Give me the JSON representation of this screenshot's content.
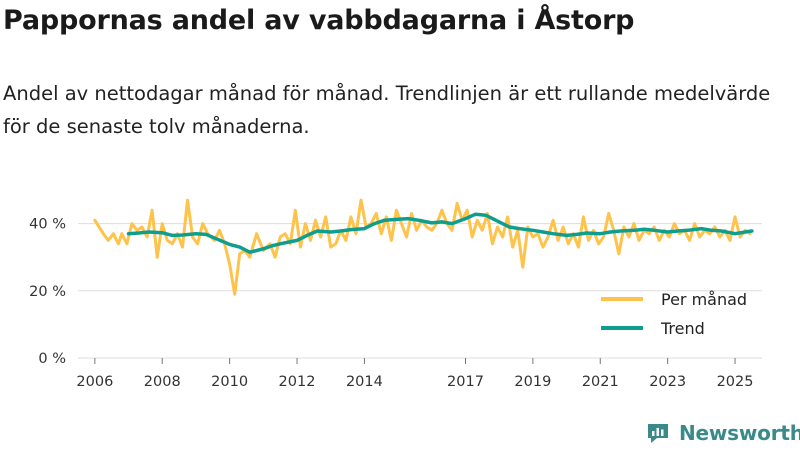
{
  "title": "Pappornas andel av vabbdagarna i Åstorp",
  "subtitle": "Andel av nettodagar månad för månad. Trendlinjen är ett rullande medelvärde för de senaste tolv månaderna.",
  "brand": {
    "name": "Newsworthy",
    "icon": "newsworthy-logo-icon"
  },
  "colors": {
    "per_month": "#ffc24a",
    "trend": "#0f9e8e",
    "grid": "#dddddd",
    "axis_text": "#333333"
  },
  "chart_data": {
    "type": "line",
    "title": "Pappornas andel av vabbdagarna i Åstorp",
    "xlabel": "",
    "ylabel": "",
    "x_range": [
      2005.5,
      2025.8
    ],
    "ylim": [
      0,
      50
    ],
    "y_ticks": [
      0,
      20,
      40
    ],
    "y_tick_labels": [
      "0 %",
      "20 %",
      "40 %"
    ],
    "x_ticks": [
      2006,
      2008,
      2010,
      2012,
      2014,
      2017,
      2019,
      2021,
      2023,
      2025
    ],
    "x_tick_labels": [
      "2006",
      "2008",
      "2010",
      "2012",
      "2014",
      "2017",
      "2019",
      "2021",
      "2023",
      "2025"
    ],
    "legend": {
      "position": "bottom-right",
      "entries": [
        "Per månad",
        "Trend"
      ]
    },
    "series": [
      {
        "name": "Per månad",
        "x": [
          2006.0,
          2006.25,
          2006.4,
          2006.55,
          2006.7,
          2006.8,
          2006.95,
          2007.1,
          2007.25,
          2007.4,
          2007.55,
          2007.7,
          2007.85,
          2008.0,
          2008.15,
          2008.3,
          2008.45,
          2008.6,
          2008.75,
          2008.9,
          2009.05,
          2009.2,
          2009.35,
          2009.55,
          2009.7,
          2009.85,
          2010.0,
          2010.15,
          2010.3,
          2010.45,
          2010.6,
          2010.8,
          2011.0,
          2011.2,
          2011.35,
          2011.5,
          2011.65,
          2011.8,
          2011.95,
          2012.1,
          2012.25,
          2012.4,
          2012.55,
          2012.7,
          2012.85,
          2013.0,
          2013.15,
          2013.3,
          2013.45,
          2013.6,
          2013.75,
          2013.9,
          2014.05,
          2014.2,
          2014.35,
          2014.5,
          2014.65,
          2014.8,
          2014.95,
          2015.1,
          2015.25,
          2015.4,
          2015.55,
          2015.7,
          2015.85,
          2016.0,
          2016.15,
          2016.3,
          2016.45,
          2016.6,
          2016.75,
          2016.9,
          2017.05,
          2017.2,
          2017.35,
          2017.5,
          2017.65,
          2017.8,
          2017.95,
          2018.1,
          2018.25,
          2018.4,
          2018.55,
          2018.7,
          2018.85,
          2019.0,
          2019.15,
          2019.3,
          2019.45,
          2019.6,
          2019.75,
          2019.9,
          2020.05,
          2020.2,
          2020.35,
          2020.5,
          2020.65,
          2020.8,
          2020.95,
          2021.1,
          2021.25,
          2021.4,
          2021.55,
          2021.7,
          2021.85,
          2022.0,
          2022.15,
          2022.3,
          2022.45,
          2022.6,
          2022.75,
          2022.9,
          2023.05,
          2023.2,
          2023.35,
          2023.5,
          2023.65,
          2023.8,
          2023.95,
          2024.1,
          2024.25,
          2024.4,
          2024.55,
          2024.7,
          2024.85,
          2025.0,
          2025.15,
          2025.3,
          2025.45
        ],
        "values": [
          41,
          37,
          35,
          37,
          34,
          37,
          34,
          40,
          38,
          39,
          36,
          44,
          30,
          40,
          35,
          34,
          37,
          33,
          47,
          36,
          34,
          40,
          37,
          35,
          38,
          34,
          28,
          19,
          31,
          32,
          30,
          37,
          32,
          34,
          30,
          36,
          37,
          34,
          44,
          33,
          40,
          35,
          41,
          36,
          42,
          33,
          34,
          38,
          35,
          42,
          37,
          47,
          39,
          40,
          43,
          37,
          42,
          35,
          44,
          40,
          36,
          43,
          38,
          41,
          39,
          38,
          40,
          44,
          40,
          38,
          46,
          41,
          44,
          36,
          41,
          38,
          43,
          34,
          39,
          36,
          42,
          33,
          38,
          27,
          39,
          36,
          37,
          33,
          36,
          41,
          35,
          39,
          34,
          37,
          33,
          42,
          35,
          38,
          34,
          36,
          43,
          38,
          31,
          39,
          36,
          40,
          35,
          38,
          37,
          39,
          35,
          38,
          36,
          40,
          37,
          38,
          35,
          40,
          36,
          38,
          37,
          39,
          36,
          38,
          35,
          42,
          36,
          38,
          37
        ]
      },
      {
        "name": "Trend",
        "x": [
          2007.0,
          2007.3,
          2007.6,
          2008.0,
          2008.3,
          2008.6,
          2009.0,
          2009.3,
          2009.6,
          2010.0,
          2010.3,
          2010.6,
          2011.0,
          2011.3,
          2011.6,
          2012.0,
          2012.3,
          2012.6,
          2013.0,
          2013.3,
          2013.6,
          2014.0,
          2014.3,
          2014.6,
          2015.0,
          2015.3,
          2015.6,
          2016.0,
          2016.3,
          2016.6,
          2017.0,
          2017.3,
          2017.6,
          2018.0,
          2018.3,
          2018.6,
          2019.0,
          2019.3,
          2019.6,
          2020.0,
          2020.3,
          2020.6,
          2021.0,
          2021.3,
          2021.6,
          2022.0,
          2022.3,
          2022.6,
          2023.0,
          2023.3,
          2023.6,
          2024.0,
          2024.3,
          2024.6,
          2025.0,
          2025.3,
          2025.5
        ],
        "values": [
          37.0,
          37.2,
          37.5,
          37.3,
          36.5,
          36.6,
          37.0,
          36.8,
          35.5,
          33.8,
          33.0,
          31.5,
          32.5,
          33.5,
          34.2,
          35.0,
          36.5,
          37.8,
          37.5,
          37.8,
          38.2,
          38.5,
          40.0,
          41.0,
          41.3,
          41.5,
          41.0,
          40.2,
          40.5,
          40.0,
          41.5,
          42.8,
          42.5,
          40.5,
          39.0,
          38.5,
          38.0,
          37.5,
          37.0,
          36.5,
          36.8,
          37.2,
          37.0,
          37.5,
          37.8,
          38.0,
          38.3,
          38.0,
          37.5,
          37.8,
          38.0,
          38.5,
          38.0,
          37.8,
          37.0,
          37.5,
          37.8
        ]
      }
    ]
  }
}
